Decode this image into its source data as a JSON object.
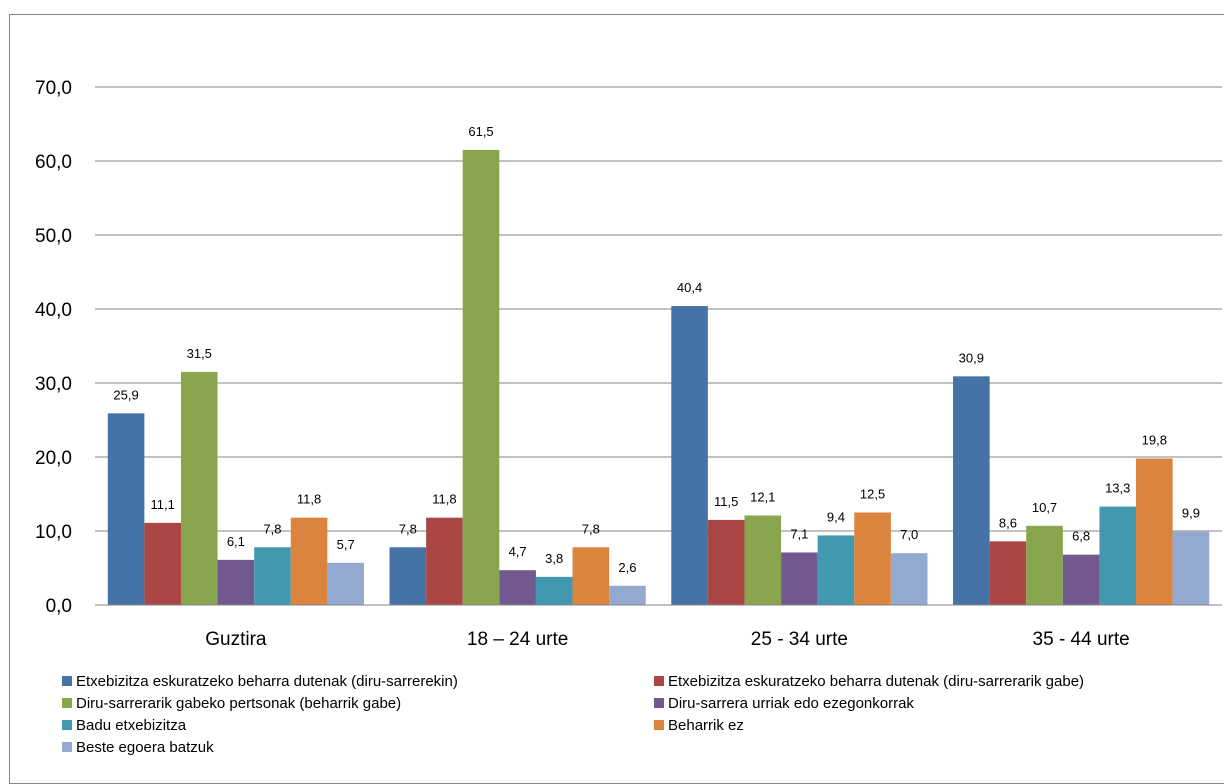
{
  "chart_data": {
    "type": "bar",
    "categories": [
      "Guztira",
      "18 – 24 urte",
      "25 - 34 urte",
      "35 - 44 urte"
    ],
    "series": [
      {
        "name": "Etxebizitza eskuratzeko beharra dutenak (diru-sarrerekin)",
        "color": "#4572A7",
        "values": [
          25.9,
          7.8,
          40.4,
          30.9
        ],
        "labels": [
          "25,9",
          "7,8",
          "40,4",
          "30,9"
        ]
      },
      {
        "name": "Etxebizitza eskuratzeko beharra dutenak (diru-sarrerarik gabe)",
        "color": "#AA4643",
        "values": [
          11.1,
          11.8,
          11.5,
          8.6
        ],
        "labels": [
          "11,1",
          "11,8",
          "11,5",
          "8,6"
        ]
      },
      {
        "name": "Diru-sarrerarik gabeko pertsonak (beharrik gabe)",
        "color": "#89A54E",
        "values": [
          31.5,
          61.5,
          12.1,
          10.7
        ],
        "labels": [
          "31,5",
          "61,5",
          "12,1",
          "10,7"
        ]
      },
      {
        "name": "Diru-sarrera urriak edo ezegonkorrak",
        "color": "#71588F",
        "values": [
          6.1,
          4.7,
          7.1,
          6.8
        ],
        "labels": [
          "6,1",
          "4,7",
          "7,1",
          "6,8"
        ]
      },
      {
        "name": "Badu etxebizitza",
        "color": "#4198AF",
        "values": [
          7.8,
          3.8,
          9.4,
          13.3
        ],
        "labels": [
          "7,8",
          "3,8",
          "9,4",
          "13,3"
        ]
      },
      {
        "name": "Beharrik ez",
        "color": "#DB843D",
        "values": [
          11.8,
          7.8,
          12.5,
          19.8
        ],
        "labels": [
          "11,8",
          "7,8",
          "12,5",
          "19,8"
        ]
      },
      {
        "name": "Beste egoera batzuk",
        "color": "#93A9CF",
        "values": [
          5.7,
          2.6,
          7.0,
          9.9
        ],
        "labels": [
          "5,7",
          "2,6",
          "7,0",
          "9,9"
        ]
      }
    ],
    "yticks": [
      "0,0",
      "10,0",
      "20,0",
      "30,0",
      "40,0",
      "50,0",
      "60,0",
      "70,0"
    ],
    "ylim": [
      0,
      70
    ],
    "grid": true,
    "legend_position": "bottom"
  }
}
